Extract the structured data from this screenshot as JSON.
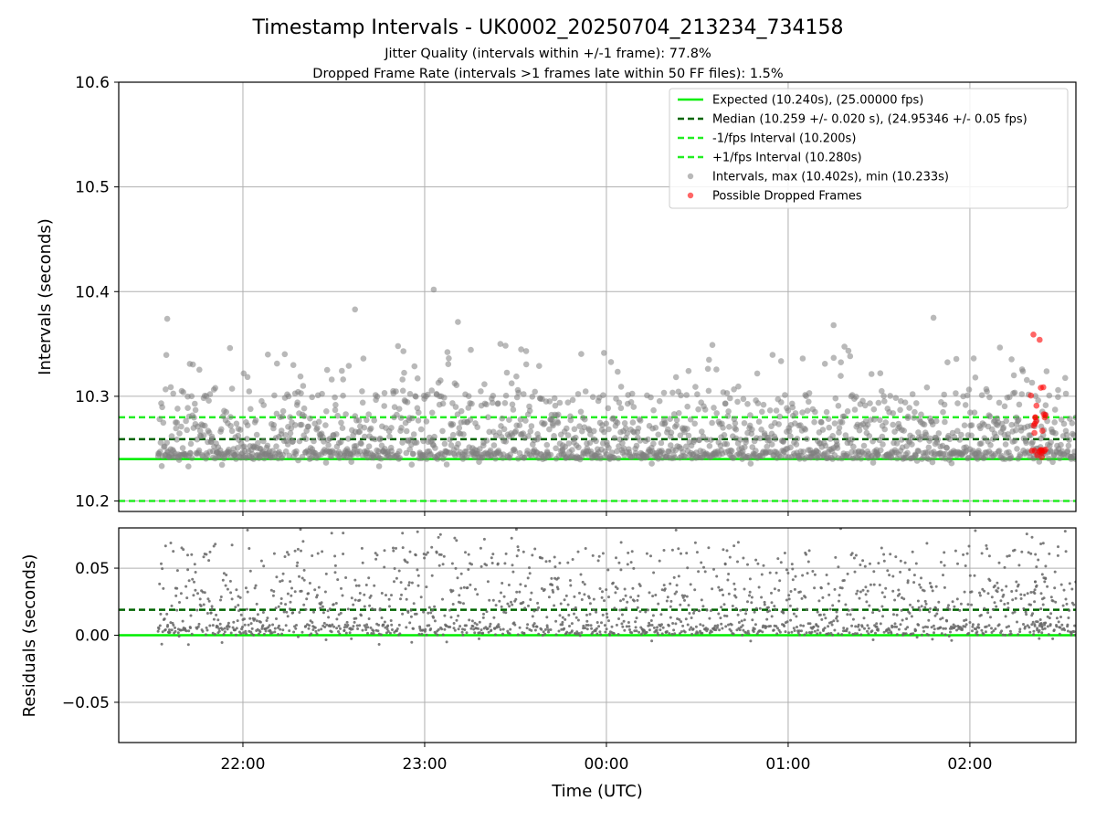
{
  "figure": {
    "title": "Timestamp Intervals - UK0002_20250704_213234_734158",
    "subtitle_1": "Jitter Quality (intervals within +/-1 frame): 77.8%",
    "subtitle_2": "Dropped Frame Rate (intervals >1 frames late within 50 FF files): 1.5%"
  },
  "colors": {
    "expected": "#00ee00",
    "median": "#006400",
    "interval_band": "#22ee22",
    "points": "#808080",
    "dropped": "#ff0000",
    "grid": "#b0b0b0"
  },
  "chart_data": [
    {
      "type": "scatter",
      "panel": "intervals",
      "ylabel": "Intervals (seconds)",
      "xlabel": "",
      "ylim": [
        10.19,
        10.6
      ],
      "xlim": [
        "21:19",
        "02:35"
      ],
      "yticks": [
        "10.2",
        "10.3",
        "10.4",
        "10.5",
        "10.6"
      ],
      "xticks": [
        "22:00",
        "23:00",
        "00:00",
        "01:00",
        "02:00"
      ],
      "grid": true,
      "legend_position": "top-right",
      "lines": [
        {
          "name": "Expected (10.240s), (25.00000 fps)",
          "y": 10.24,
          "style": "solid",
          "color": "#00ee00"
        },
        {
          "name": "Median (10.259 +/- 0.020 s), (24.95346 +/- 0.05 fps)",
          "y": 10.259,
          "style": "dashed",
          "color": "#006400"
        },
        {
          "name": "-1/fps Interval (10.200s)",
          "y": 10.2,
          "style": "dashed",
          "color": "#22ee22"
        },
        {
          "name": "+1/fps Interval (10.280s)",
          "y": 10.28,
          "style": "dashed",
          "color": "#22ee22"
        }
      ],
      "series": [
        {
          "name": "Intervals, max (10.402s), min (10.233s)",
          "x_range": [
            "21:32",
            "02:35"
          ],
          "y_min": 10.233,
          "y_max": 10.402,
          "median": 10.259,
          "count_approx": 1780,
          "notable_points": [
            {
              "x": "21:35",
              "y": 10.374
            },
            {
              "x": "22:37",
              "y": 10.383
            },
            {
              "x": "23:03",
              "y": 10.402
            },
            {
              "x": "23:11",
              "y": 10.371
            },
            {
              "x": "01:15",
              "y": 10.368
            },
            {
              "x": "01:48",
              "y": 10.375
            },
            {
              "x": "21:42",
              "y": 10.233
            },
            {
              "x": "00:35",
              "y": 10.349
            }
          ]
        },
        {
          "name": "Possible Dropped Frames",
          "x_range": [
            "02:20",
            "02:25"
          ],
          "y_min": 10.24,
          "y_max": 10.359,
          "count_approx": 27
        }
      ]
    },
    {
      "type": "scatter",
      "panel": "residuals",
      "ylabel": "Residuals (seconds)",
      "xlabel": "Time (UTC)",
      "ylim": [
        -0.08,
        0.08
      ],
      "yticks": [
        "−0.05",
        "0.00",
        "0.05"
      ],
      "xticks": [
        "22:00",
        "23:00",
        "00:00",
        "01:00",
        "02:00"
      ],
      "grid": true,
      "lines": [
        {
          "y": 0.0,
          "style": "solid",
          "color": "#00ee00"
        },
        {
          "y": 0.019,
          "style": "dashed",
          "color": "#006400"
        }
      ],
      "series": [
        {
          "y_min": -0.008,
          "y_max": 0.08,
          "count_approx": 1780
        }
      ]
    }
  ]
}
